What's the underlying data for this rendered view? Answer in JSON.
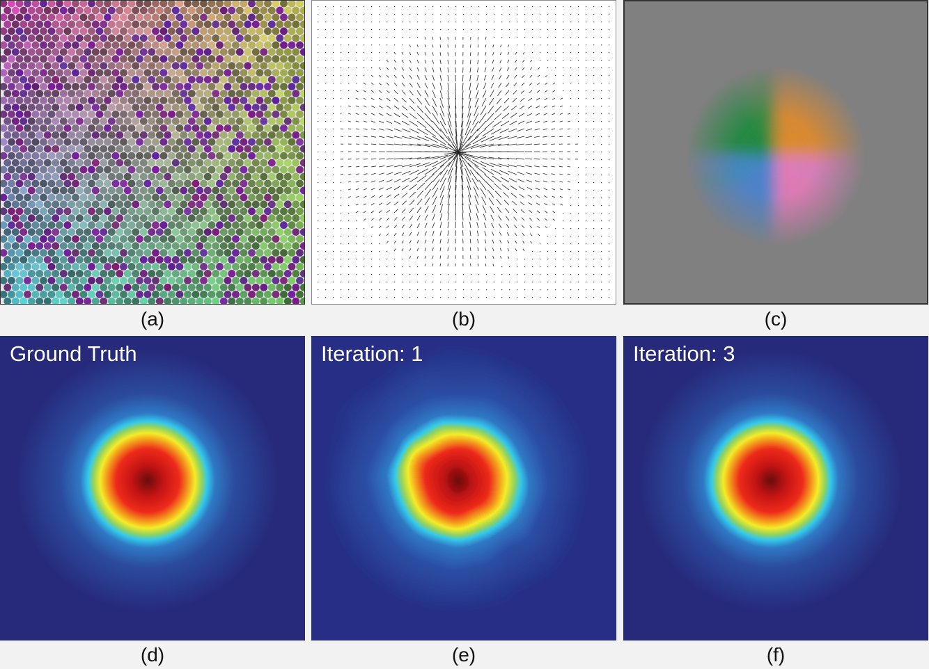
{
  "captions": {
    "a": "(a)",
    "b": "(b)",
    "c": "(c)",
    "d": "(d)",
    "e": "(e)",
    "f": "(f)"
  },
  "labels": {
    "d": "Ground Truth",
    "e": "Iteration: 1",
    "f": "Iteration: 3"
  },
  "colors": {
    "page_background": "#f2f2f2",
    "heatmap_background": "#27297a",
    "heatmap_core": "#7a1010",
    "flow_background": "#808080"
  }
}
